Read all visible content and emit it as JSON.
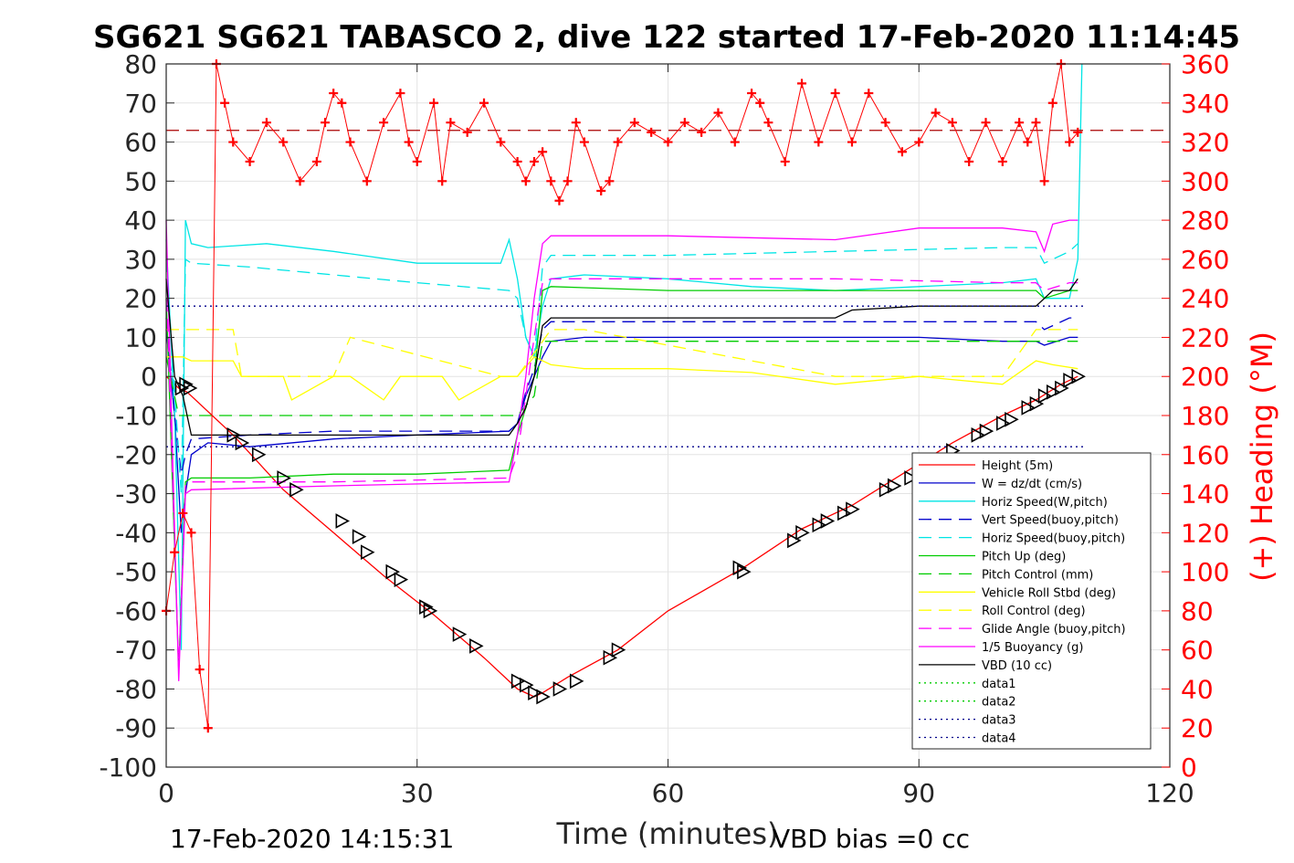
{
  "chart_data": {
    "type": "line",
    "title": "SG621 SG621 TABASCO 2, dive 122 started 17-Feb-2020 11:14:45",
    "xlabel": "Time (minutes)",
    "ylabel_right": "(+) Heading (°M)",
    "xlim": [
      0,
      120
    ],
    "ylim": [
      -100,
      80
    ],
    "ylim_right": [
      0,
      360
    ],
    "x_ticks": [
      "0",
      "30",
      "60",
      "90",
      "120"
    ],
    "y_ticks": [
      "80",
      "70",
      "60",
      "50",
      "40",
      "30",
      "20",
      "10",
      "0",
      "-10",
      "-20",
      "-30",
      "-40",
      "-50",
      "-60",
      "-70",
      "-80",
      "-90",
      "-100"
    ],
    "y_ticks_right": [
      "360",
      "340",
      "320",
      "300",
      "280",
      "260",
      "240",
      "220",
      "200",
      "180",
      "160",
      "140",
      "120",
      "100",
      "80",
      "60",
      "40",
      "20",
      "0"
    ],
    "grid": true,
    "legend_position": "bottom-right",
    "footer_left": "17-Feb-2020 14:15:31",
    "footer_right": "VBD bias =0 cc",
    "series": [
      {
        "name": "Height (5m)",
        "color": "#ff0000",
        "style": "solid",
        "x": [
          0,
          1.5,
          2.5,
          8,
          14,
          20,
          26,
          32,
          38,
          42,
          44,
          45,
          48,
          54,
          60,
          69,
          76,
          82,
          88,
          94,
          100,
          104,
          107,
          109
        ],
        "y": [
          0,
          -3,
          -4,
          -15,
          -29,
          -40,
          -51,
          -61,
          -72,
          -80,
          -82,
          -81,
          -77,
          -70,
          -60,
          -49,
          -39,
          -33,
          -25,
          -17,
          -10,
          -6,
          -2,
          0
        ]
      },
      {
        "name": "W = dz/dt (cm/s)",
        "color": "#0000cc",
        "style": "solid",
        "x": [
          0,
          1,
          1.8,
          2.3,
          3,
          5,
          10,
          20,
          30,
          41,
          42,
          43,
          44,
          45,
          46,
          50,
          60,
          80,
          90,
          100,
          104,
          105,
          108,
          109
        ],
        "y": [
          12,
          -10,
          -40,
          -30,
          -20,
          -17,
          -18,
          -16,
          -15,
          -14,
          -12,
          -5,
          0,
          5,
          9,
          10,
          10,
          10,
          10,
          9,
          9,
          8,
          10,
          10
        ]
      },
      {
        "name": "Horiz Speed(W,pitch)",
        "color": "#00e5e5",
        "style": "solid",
        "x": [
          0,
          1,
          1.8,
          2.3,
          3,
          5,
          12,
          20,
          30,
          40,
          41,
          42,
          43,
          44,
          45,
          46,
          50,
          60,
          70,
          80,
          90,
          100,
          104,
          105,
          108,
          109,
          109.5
        ],
        "y": [
          35,
          -10,
          -70,
          40,
          34,
          33,
          34,
          32,
          29,
          29,
          35,
          25,
          10,
          5,
          18,
          25,
          26,
          25,
          23,
          22,
          23,
          24,
          25,
          20,
          20,
          30,
          80
        ]
      },
      {
        "name": "Vert Speed(buoy,pitch)",
        "color": "#0000cc",
        "style": "dashed",
        "x": [
          0,
          1,
          1.8,
          2.3,
          3,
          10,
          20,
          30,
          41,
          42,
          43,
          44,
          45,
          46,
          60,
          80,
          100,
          104,
          105,
          108,
          109
        ],
        "y": [
          15,
          -10,
          -25,
          -20,
          -16,
          -15,
          -14,
          -14,
          -14,
          -12,
          -4,
          2,
          12,
          14,
          14,
          14,
          14,
          14,
          12,
          15,
          15
        ]
      },
      {
        "name": "Horiz Speed(buoy,pitch)",
        "color": "#00e5e5",
        "style": "dashed",
        "x": [
          0,
          1.8,
          2.3,
          3,
          10,
          20,
          30,
          41,
          42,
          43,
          44,
          45,
          46,
          60,
          80,
          100,
          104,
          105,
          108,
          109
        ],
        "y": [
          30,
          -30,
          30,
          29,
          28,
          26,
          24,
          22,
          20,
          10,
          5,
          28,
          31,
          31,
          32,
          33,
          33,
          29,
          32,
          34
        ]
      },
      {
        "name": "Pitch Up (deg)",
        "color": "#00cc00",
        "style": "solid",
        "x": [
          0,
          1.5,
          2.3,
          3,
          10,
          20,
          30,
          41,
          42,
          43,
          44,
          45,
          46,
          60,
          80,
          100,
          104,
          105,
          108,
          109
        ],
        "y": [
          20,
          -75,
          -27,
          -26,
          -26,
          -25,
          -25,
          -24,
          -15,
          -8,
          0,
          22,
          23,
          22,
          22,
          22,
          22,
          20,
          22,
          22
        ]
      },
      {
        "name": "Pitch Control (mm)",
        "color": "#00cc00",
        "style": "dashed",
        "x": [
          0,
          1.5,
          2,
          42,
          44,
          45,
          46,
          109
        ],
        "y": [
          5,
          -10,
          -10,
          -10,
          -5,
          9,
          9,
          9
        ]
      },
      {
        "name": "Vehicle Roll Stbd (deg)",
        "color": "#ffff00",
        "style": "solid",
        "x": [
          0,
          2,
          3,
          8,
          9,
          14,
          15,
          20,
          22,
          26,
          28,
          33,
          35,
          40,
          42,
          44,
          46,
          50,
          60,
          70,
          80,
          90,
          100,
          104,
          106,
          109
        ],
        "y": [
          5,
          5,
          4,
          4,
          0,
          0,
          -6,
          0,
          0,
          -6,
          0,
          0,
          -6,
          0,
          0,
          5,
          3,
          2,
          2,
          1,
          -2,
          0,
          -2,
          4,
          3,
          2
        ]
      },
      {
        "name": "Roll Control (deg)",
        "color": "#ffff00",
        "style": "dashed",
        "x": [
          0,
          2,
          3,
          8,
          9,
          20,
          22,
          40,
          42,
          46,
          50,
          60,
          70,
          80,
          90,
          100,
          104,
          106,
          109
        ],
        "y": [
          12,
          12,
          12,
          12,
          0,
          0,
          10,
          0,
          0,
          12,
          12,
          8,
          4,
          0,
          0,
          0,
          12,
          12,
          12
        ]
      },
      {
        "name": "Glide Angle (buoy,pitch)",
        "color": "#ff00ff",
        "style": "dashed",
        "x": [
          0,
          1.5,
          2.3,
          3,
          20,
          41,
          42,
          43,
          44,
          45,
          46,
          60,
          80,
          100,
          104,
          105,
          108,
          109
        ],
        "y": [
          25,
          -75,
          -28,
          -27,
          -27,
          -26,
          -20,
          -5,
          10,
          24,
          25,
          25,
          25,
          24,
          24,
          22,
          24,
          24
        ]
      },
      {
        "name": "1/5 Buoyancy (g)",
        "color": "#ff00ff",
        "style": "solid",
        "x": [
          0,
          1.5,
          2.3,
          3,
          20,
          41,
          42,
          43,
          44,
          45,
          46,
          60,
          80,
          90,
          100,
          104,
          105,
          106,
          108,
          109
        ],
        "y": [
          40,
          -78,
          -30,
          -29,
          -28,
          -27,
          -15,
          0,
          20,
          34,
          36,
          36,
          35,
          38,
          38,
          37,
          32,
          39,
          40,
          40
        ]
      },
      {
        "name": "VBD (10 cc)",
        "color": "#000000",
        "style": "solid",
        "x": [
          0,
          1,
          2,
          3,
          41,
          42,
          43,
          44,
          45,
          46,
          80,
          82,
          90,
          104,
          105,
          106,
          107,
          108,
          109
        ],
        "y": [
          25,
          0,
          -5,
          -15,
          -15,
          -12,
          -8,
          0,
          13,
          15,
          15,
          17,
          18,
          18,
          20,
          22,
          22,
          22,
          25
        ]
      },
      {
        "name": "data1",
        "color": "#00cc00",
        "style": "dotted",
        "x": [],
        "y": []
      },
      {
        "name": "data2",
        "color": "#00cc00",
        "style": "dotted",
        "x": [],
        "y": []
      },
      {
        "name": "data3",
        "color": "#00008b",
        "style": "dotted",
        "x": [
          0,
          110
        ],
        "y": [
          18,
          18
        ]
      },
      {
        "name": "data4",
        "color": "#00008b",
        "style": "dotted",
        "x": [
          0,
          110
        ],
        "y": [
          -18,
          -18
        ]
      }
    ],
    "heading_series": {
      "color": "#ff0000",
      "mean": 326,
      "x": [
        0,
        1,
        2,
        3,
        4,
        5,
        6,
        7,
        8,
        10,
        12,
        14,
        16,
        18,
        19,
        20,
        21,
        22,
        24,
        26,
        28,
        29,
        30,
        32,
        33,
        34,
        36,
        38,
        40,
        42,
        43,
        44,
        45,
        46,
        47,
        48,
        49,
        50,
        52,
        53,
        54,
        56,
        58,
        60,
        62,
        64,
        66,
        68,
        70,
        71,
        72,
        74,
        76,
        78,
        80,
        82,
        84,
        86,
        88,
        90,
        92,
        94,
        96,
        98,
        100,
        102,
        103,
        104,
        105,
        106,
        107,
        108,
        109
      ],
      "y": [
        80,
        110,
        130,
        120,
        50,
        20,
        360,
        340,
        320,
        310,
        330,
        320,
        300,
        310,
        330,
        345,
        340,
        320,
        300,
        330,
        345,
        320,
        310,
        340,
        300,
        330,
        325,
        340,
        320,
        310,
        300,
        310,
        315,
        300,
        290,
        300,
        330,
        320,
        295,
        300,
        320,
        330,
        325,
        320,
        330,
        325,
        335,
        320,
        345,
        340,
        330,
        310,
        350,
        320,
        345,
        320,
        345,
        330,
        315,
        320,
        335,
        330,
        310,
        330,
        310,
        330,
        320,
        330,
        300,
        340,
        360,
        320,
        325
      ]
    },
    "dive_markers": {
      "x": [
        1.8,
        2.3,
        2.8,
        8,
        9,
        11,
        14,
        15.5,
        21,
        23,
        24,
        27,
        28,
        31,
        31.5,
        35,
        37,
        42,
        43,
        44,
        45,
        47,
        49,
        53,
        54,
        68.5,
        69,
        75,
        76,
        78,
        79,
        81,
        82,
        86,
        87,
        89,
        91,
        94,
        97,
        98,
        100,
        101,
        103,
        104,
        105,
        106,
        107,
        108,
        109
      ],
      "y": [
        -3,
        -2,
        -3,
        -15,
        -17,
        -20,
        -26,
        -29,
        -37,
        -41,
        -45,
        -50,
        -52,
        -59,
        -60,
        -66,
        -69,
        -78,
        -79,
        -81,
        -82,
        -80,
        -78,
        -72,
        -70,
        -49,
        -50,
        -42,
        -40,
        -38,
        -37,
        -35,
        -34,
        -29,
        -28,
        -26,
        -23,
        -19,
        -15,
        -14,
        -12,
        -11,
        -8,
        -7,
        -5,
        -4,
        -3,
        -1,
        0
      ]
    }
  }
}
